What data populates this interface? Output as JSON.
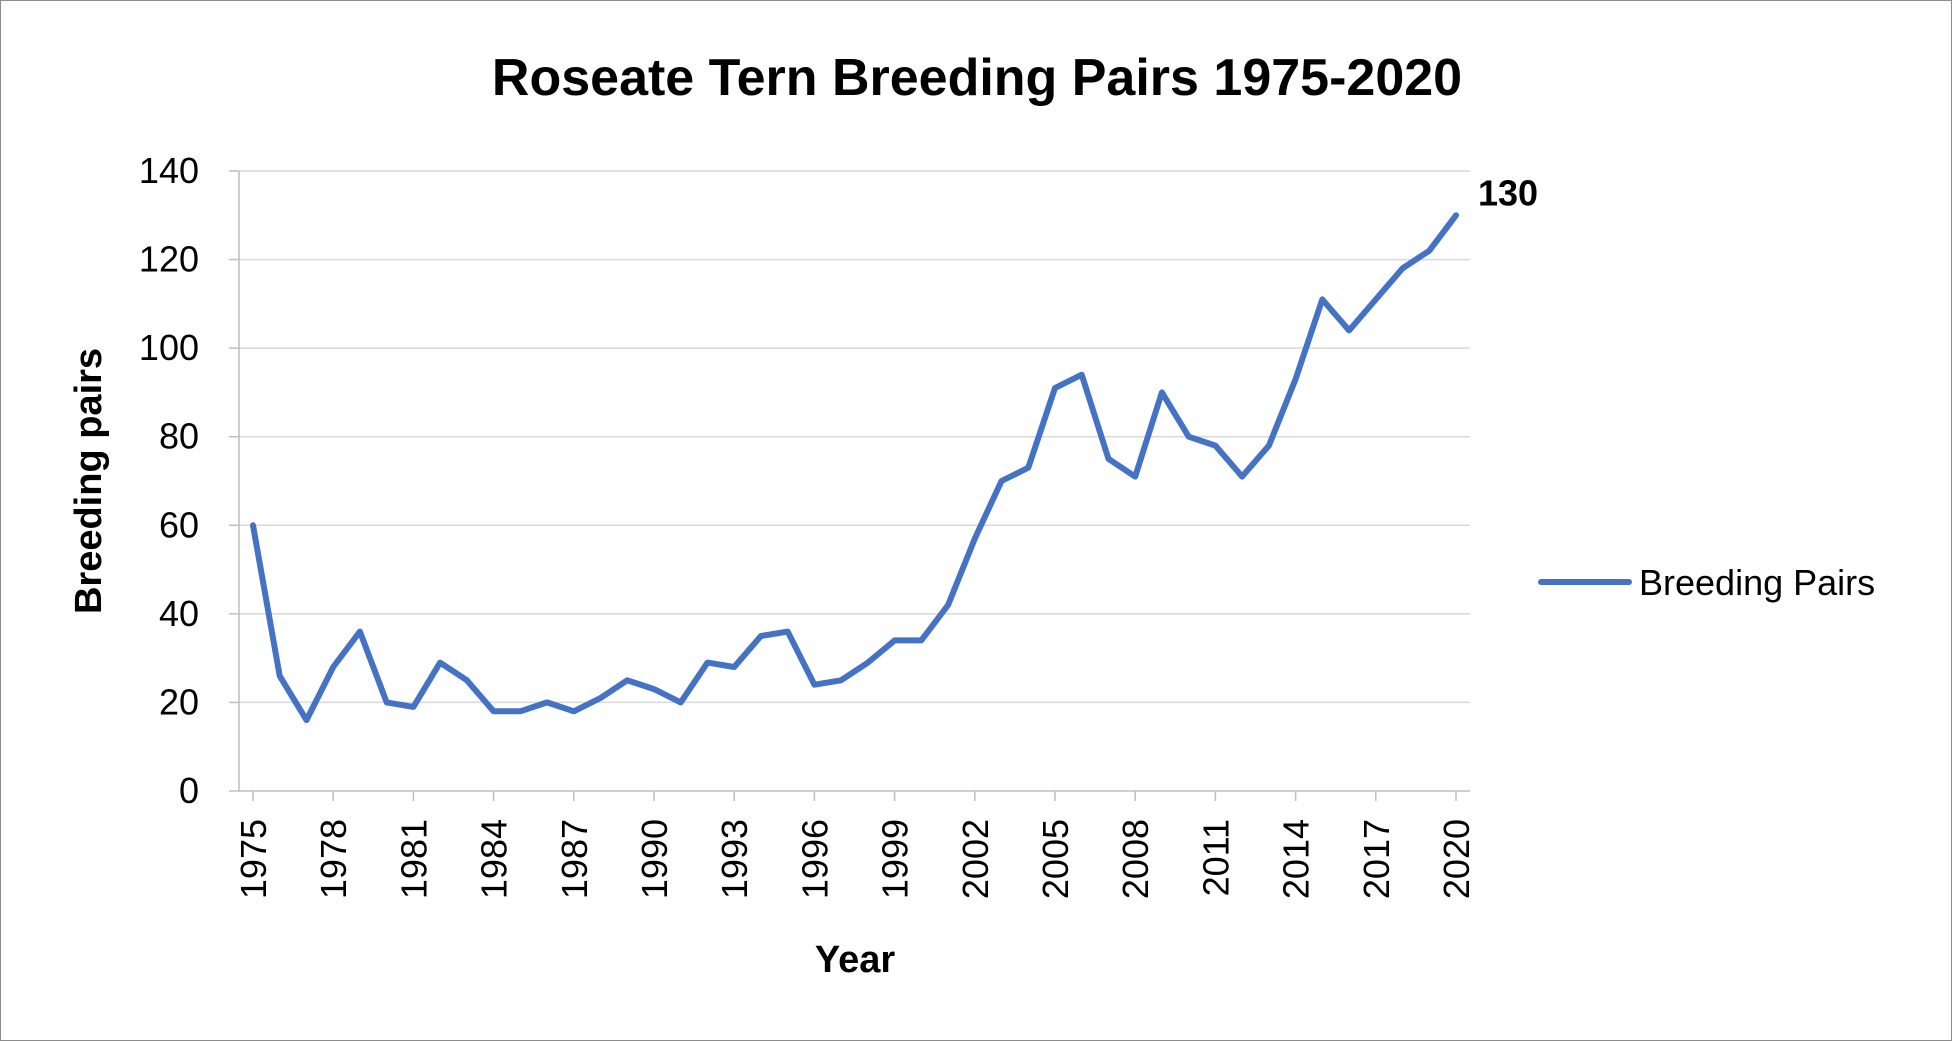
{
  "chart_data": {
    "type": "line",
    "title": "Roseate Tern Breeding Pairs 1975-2020",
    "xlabel": "Year",
    "ylabel": "Breeding pairs",
    "ylim": [
      0,
      140
    ],
    "yticks": [
      "0",
      "20",
      "40",
      "60",
      "80",
      "100",
      "120",
      "140"
    ],
    "xticks": [
      "1975",
      "1978",
      "1981",
      "1984",
      "1987",
      "1990",
      "1993",
      "1996",
      "1999",
      "2002",
      "2005",
      "2008",
      "2011",
      "2014",
      "2017",
      "2020"
    ],
    "grid": true,
    "legend_position": "right",
    "x": [
      1975,
      1976,
      1977,
      1978,
      1979,
      1980,
      1981,
      1982,
      1983,
      1984,
      1985,
      1986,
      1987,
      1988,
      1989,
      1990,
      1991,
      1992,
      1993,
      1994,
      1995,
      1996,
      1997,
      1998,
      1999,
      2000,
      2001,
      2002,
      2003,
      2004,
      2005,
      2006,
      2007,
      2008,
      2009,
      2010,
      2011,
      2012,
      2013,
      2014,
      2015,
      2016,
      2017,
      2018,
      2019,
      2020
    ],
    "series": [
      {
        "name": "Breeding Pairs",
        "color": "#4472C4",
        "values": [
          60,
          26,
          16,
          28,
          36,
          20,
          19,
          29,
          25,
          18,
          18,
          20,
          18,
          21,
          25,
          23,
          20,
          29,
          28,
          35,
          36,
          24,
          25,
          29,
          34,
          34,
          42,
          57,
          70,
          73,
          91,
          94,
          75,
          71,
          90,
          80,
          78,
          71,
          78,
          93,
          111,
          104,
          111,
          118,
          122,
          130
        ]
      }
    ],
    "annotations": [
      {
        "text": "130",
        "x": 2020,
        "y": 130
      }
    ]
  }
}
